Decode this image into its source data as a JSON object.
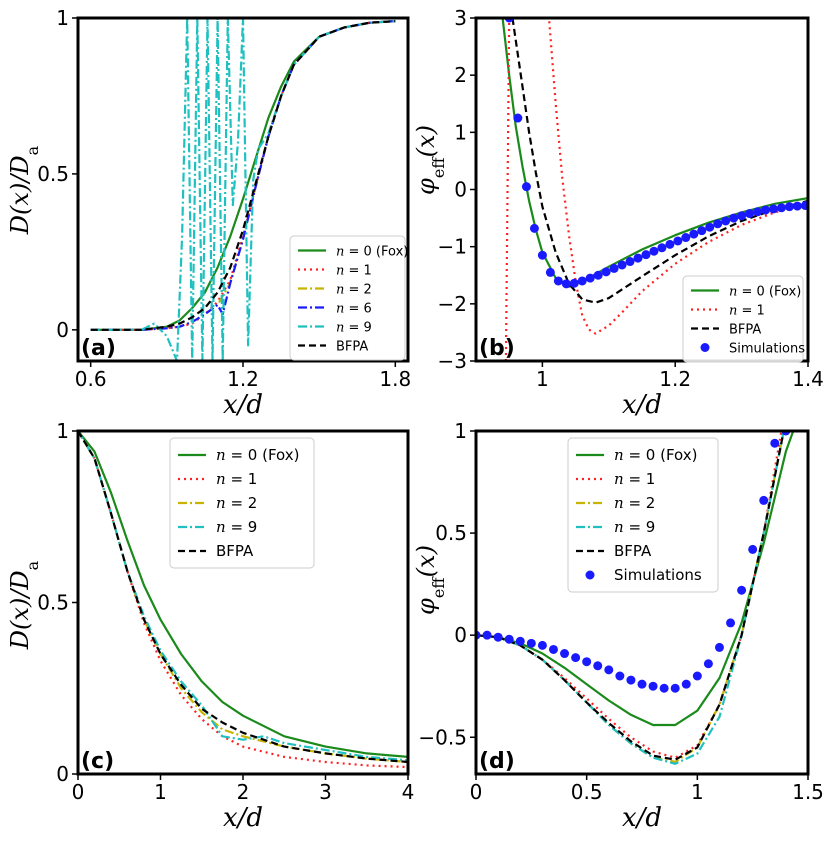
{
  "figure": "Four-panel plot of diffusivity ratio and effective potential versus x/d",
  "chart_data": [
    {
      "panel": "a",
      "type": "line",
      "panel_label": "(a)",
      "xlabel": "x/d",
      "ylabel": "D(x)/D_a",
      "xlim": [
        0.55,
        1.85
      ],
      "ylim": [
        -0.1,
        1.0
      ],
      "xticks": [
        0.6,
        1.2,
        1.8
      ],
      "xtick_labels": [
        "0.6",
        "1.2",
        "1.8"
      ],
      "yticks": [
        0,
        0.5,
        1
      ],
      "ytick_labels": [
        "0",
        "0.5",
        "1"
      ],
      "legend_position": "lower-right",
      "series": [
        {
          "name": "n = 0 (Fox)",
          "color": "#1a8a1a",
          "style": "solid",
          "x": [
            0.6,
            0.8,
            0.9,
            0.95,
            1.0,
            1.05,
            1.1,
            1.15,
            1.2,
            1.25,
            1.3,
            1.35,
            1.4,
            1.5,
            1.6,
            1.7,
            1.8
          ],
          "y": [
            0.0,
            0.0,
            0.01,
            0.03,
            0.07,
            0.12,
            0.2,
            0.3,
            0.42,
            0.55,
            0.68,
            0.78,
            0.86,
            0.94,
            0.97,
            0.985,
            0.99
          ]
        },
        {
          "name": "n = 1",
          "color": "#ff2020",
          "style": "dotted",
          "x": [
            0.6,
            0.8,
            0.9,
            0.95,
            1.0,
            1.05,
            1.1,
            1.15,
            1.2,
            1.25,
            1.3,
            1.35,
            1.4,
            1.5,
            1.6,
            1.7,
            1.8
          ],
          "y": [
            0.0,
            0.0,
            0.005,
            0.01,
            0.02,
            0.05,
            0.09,
            0.16,
            0.3,
            0.46,
            0.62,
            0.75,
            0.85,
            0.94,
            0.97,
            0.985,
            0.99
          ]
        },
        {
          "name": "n = 2",
          "color": "#c8b400",
          "style": "dashdot",
          "x": [
            0.6,
            0.8,
            0.9,
            0.95,
            1.0,
            1.05,
            1.1,
            1.15,
            1.2,
            1.25,
            1.3,
            1.35,
            1.4,
            1.5,
            1.6,
            1.7,
            1.8
          ],
          "y": [
            0.0,
            0.0,
            0.005,
            0.01,
            0.025,
            0.05,
            0.08,
            0.15,
            0.29,
            0.46,
            0.62,
            0.75,
            0.85,
            0.94,
            0.97,
            0.985,
            0.99
          ]
        },
        {
          "name": "n = 6",
          "color": "#1a1aff",
          "style": "dashdot",
          "x": [
            0.6,
            0.8,
            0.9,
            0.95,
            1.0,
            1.05,
            1.1,
            1.12,
            1.15,
            1.2,
            1.25,
            1.3,
            1.35,
            1.4,
            1.5,
            1.6,
            1.7,
            1.8
          ],
          "y": [
            0.0,
            0.0,
            0.005,
            0.01,
            0.025,
            0.05,
            0.08,
            0.05,
            0.15,
            0.29,
            0.46,
            0.62,
            0.75,
            0.85,
            0.94,
            0.97,
            0.985,
            0.99
          ]
        },
        {
          "name": "n = 9",
          "color": "#20c0c0",
          "style": "dashdot",
          "x": [
            0.6,
            0.8,
            0.85,
            0.9,
            0.94,
            0.96,
            0.98,
            1.0,
            1.02,
            1.04,
            1.06,
            1.08,
            1.1,
            1.12,
            1.14,
            1.16,
            1.18,
            1.2,
            1.22,
            1.24,
            1.26,
            1.3,
            1.35,
            1.4,
            1.5,
            1.6,
            1.7,
            1.8
          ],
          "y": [
            0.0,
            0.0,
            0.02,
            -0.02,
            -0.1,
            0.3,
            1.0,
            -0.1,
            1.0,
            -0.1,
            1.0,
            -0.1,
            1.0,
            -0.1,
            1.0,
            0.4,
            0.6,
            1.0,
            -0.05,
            0.48,
            0.58,
            0.63,
            0.75,
            0.85,
            0.94,
            0.97,
            0.985,
            0.99
          ]
        },
        {
          "name": "BFPA",
          "color": "#000000",
          "style": "dashed",
          "x": [
            0.6,
            0.8,
            0.9,
            0.95,
            1.0,
            1.05,
            1.1,
            1.15,
            1.2,
            1.25,
            1.3,
            1.35,
            1.4,
            1.5,
            1.6,
            1.7,
            1.8
          ],
          "y": [
            0.0,
            0.0,
            0.01,
            0.02,
            0.04,
            0.07,
            0.12,
            0.2,
            0.32,
            0.47,
            0.62,
            0.75,
            0.85,
            0.94,
            0.97,
            0.985,
            0.99
          ]
        }
      ]
    },
    {
      "panel": "b",
      "type": "line",
      "panel_label": "(b)",
      "xlabel": "x/d",
      "ylabel": "φ_eff(x)",
      "xlim": [
        0.9,
        1.4
      ],
      "ylim": [
        -3,
        3
      ],
      "xticks": [
        1.0,
        1.2,
        1.4
      ],
      "xtick_labels": [
        "1",
        "1.2",
        "1.4"
      ],
      "yticks": [
        -3,
        -2,
        -1,
        0,
        1,
        2,
        3
      ],
      "ytick_labels": [
        "−3",
        "−2",
        "−1",
        "0",
        "1",
        "2",
        "3"
      ],
      "legend_position": "lower-right",
      "series": [
        {
          "name": "n = 0 (Fox)",
          "color": "#1a8a1a",
          "style": "solid",
          "x": [
            0.94,
            0.95,
            0.96,
            0.97,
            0.98,
            0.99,
            1.0,
            1.02,
            1.04,
            1.06,
            1.08,
            1.1,
            1.15,
            1.2,
            1.25,
            1.3,
            1.35,
            1.4
          ],
          "y": [
            3.0,
            2.0,
            1.1,
            0.4,
            -0.2,
            -0.7,
            -1.1,
            -1.55,
            -1.7,
            -1.6,
            -1.48,
            -1.35,
            -1.05,
            -0.8,
            -0.58,
            -0.4,
            -0.25,
            -0.15
          ]
        },
        {
          "name": "n = 1",
          "color": "#ff2020",
          "style": "dotted",
          "x": [
            0.945,
            0.95,
            0.96,
            0.98,
            1.0,
            1.01,
            1.02,
            1.03,
            1.04,
            1.05,
            1.06,
            1.07,
            1.08,
            1.1,
            1.12,
            1.15,
            1.2,
            1.25,
            1.3,
            1.35,
            1.4
          ],
          "y": [
            -3.0,
            3.0,
            3.2,
            3.2,
            3.1,
            3.0,
            1.5,
            0.2,
            -0.8,
            -1.6,
            -2.2,
            -2.45,
            -2.52,
            -2.38,
            -2.15,
            -1.78,
            -1.3,
            -0.92,
            -0.62,
            -0.4,
            -0.25
          ]
        },
        {
          "name": "BFPA",
          "color": "#000000",
          "style": "dashed",
          "x": [
            0.955,
            0.97,
            0.98,
            0.99,
            1.0,
            1.02,
            1.04,
            1.06,
            1.08,
            1.1,
            1.15,
            1.2,
            1.25,
            1.3,
            1.35,
            1.4
          ],
          "y": [
            3.0,
            1.8,
            1.0,
            0.3,
            -0.3,
            -1.1,
            -1.65,
            -1.92,
            -1.98,
            -1.9,
            -1.52,
            -1.15,
            -0.82,
            -0.55,
            -0.35,
            -0.2
          ]
        },
        {
          "name": "Simulations",
          "color": "#1a1aff",
          "style": "markers",
          "x": [
            0.95,
            0.963,
            0.976,
            0.988,
            1.0,
            1.012,
            1.024,
            1.036,
            1.048,
            1.06,
            1.072,
            1.084,
            1.096,
            1.108,
            1.12,
            1.132,
            1.144,
            1.156,
            1.168,
            1.18,
            1.192,
            1.204,
            1.216,
            1.228,
            1.24,
            1.252,
            1.264,
            1.276,
            1.288,
            1.3,
            1.312,
            1.324,
            1.336,
            1.348,
            1.36,
            1.372,
            1.384,
            1.396
          ],
          "y": [
            3.0,
            1.25,
            0.05,
            -0.68,
            -1.15,
            -1.45,
            -1.6,
            -1.65,
            -1.64,
            -1.6,
            -1.55,
            -1.5,
            -1.44,
            -1.38,
            -1.32,
            -1.26,
            -1.2,
            -1.14,
            -1.08,
            -1.02,
            -0.96,
            -0.9,
            -0.84,
            -0.78,
            -0.72,
            -0.66,
            -0.6,
            -0.55,
            -0.5,
            -0.46,
            -0.42,
            -0.39,
            -0.36,
            -0.34,
            -0.32,
            -0.3,
            -0.29,
            -0.28
          ]
        }
      ]
    },
    {
      "panel": "c",
      "type": "line",
      "panel_label": "(c)",
      "xlabel": "x/d",
      "ylabel": "D(x)/D_a",
      "xlim": [
        0,
        4
      ],
      "ylim": [
        0,
        1
      ],
      "xticks": [
        0,
        1,
        2,
        3,
        4
      ],
      "xtick_labels": [
        "0",
        "1",
        "2",
        "3",
        "4"
      ],
      "yticks": [
        0,
        0.5,
        1
      ],
      "ytick_labels": [
        "0",
        "0.5",
        "1"
      ],
      "legend_position": "top-center",
      "series": [
        {
          "name": "n = 0 (Fox)",
          "color": "#1a8a1a",
          "style": "solid",
          "x": [
            0,
            0.2,
            0.4,
            0.6,
            0.8,
            1.0,
            1.25,
            1.5,
            1.75,
            2.0,
            2.5,
            3.0,
            3.5,
            4.0
          ],
          "y": [
            1.0,
            0.94,
            0.82,
            0.68,
            0.55,
            0.45,
            0.35,
            0.27,
            0.21,
            0.17,
            0.11,
            0.08,
            0.06,
            0.05
          ]
        },
        {
          "name": "n = 1",
          "color": "#ff2020",
          "style": "dotted",
          "x": [
            0,
            0.2,
            0.4,
            0.6,
            0.8,
            1.0,
            1.25,
            1.5,
            1.75,
            2.0,
            2.5,
            3.0,
            3.5,
            4.0
          ],
          "y": [
            1.0,
            0.92,
            0.76,
            0.59,
            0.44,
            0.33,
            0.23,
            0.16,
            0.11,
            0.08,
            0.05,
            0.035,
            0.025,
            0.02
          ]
        },
        {
          "name": "n = 2",
          "color": "#c8b400",
          "style": "dashdot",
          "x": [
            0,
            0.2,
            0.4,
            0.6,
            0.8,
            1.0,
            1.25,
            1.5,
            1.75,
            2.0,
            2.5,
            3.0,
            3.5,
            4.0
          ],
          "y": [
            1.0,
            0.92,
            0.76,
            0.59,
            0.45,
            0.35,
            0.25,
            0.18,
            0.13,
            0.11,
            0.08,
            0.06,
            0.045,
            0.035
          ]
        },
        {
          "name": "n = 9",
          "color": "#20c0c0",
          "style": "dashdot",
          "x": [
            0,
            0.2,
            0.4,
            0.6,
            0.8,
            1.0,
            1.25,
            1.5,
            1.75,
            2.0,
            2.25,
            2.5,
            3.0,
            3.5,
            4.0
          ],
          "y": [
            1.0,
            0.92,
            0.76,
            0.59,
            0.46,
            0.36,
            0.27,
            0.2,
            0.11,
            0.1,
            0.11,
            0.09,
            0.07,
            0.05,
            0.04
          ]
        },
        {
          "name": "BFPA",
          "color": "#000000",
          "style": "dashed",
          "x": [
            0,
            0.2,
            0.4,
            0.6,
            0.8,
            1.0,
            1.25,
            1.5,
            1.75,
            2.0,
            2.5,
            3.0,
            3.5,
            4.0
          ],
          "y": [
            1.0,
            0.92,
            0.76,
            0.59,
            0.45,
            0.35,
            0.26,
            0.19,
            0.15,
            0.12,
            0.08,
            0.06,
            0.045,
            0.035
          ]
        }
      ]
    },
    {
      "panel": "d",
      "type": "line",
      "panel_label": "(d)",
      "xlabel": "x/d",
      "ylabel": "φ_eff(x)",
      "xlim": [
        0,
        1.5
      ],
      "ylim": [
        -0.68,
        1.0
      ],
      "xticks": [
        0,
        0.5,
        1.0,
        1.5
      ],
      "xtick_labels": [
        "0",
        "0.5",
        "1",
        "1.5"
      ],
      "yticks": [
        -0.5,
        0,
        0.5,
        1
      ],
      "ytick_labels": [
        "−0.5",
        "0",
        "0.5",
        "1"
      ],
      "legend_position": "top-center",
      "series": [
        {
          "name": "n = 0 (Fox)",
          "color": "#1a8a1a",
          "style": "solid",
          "x": [
            0,
            0.1,
            0.2,
            0.3,
            0.4,
            0.5,
            0.6,
            0.7,
            0.8,
            0.9,
            1.0,
            1.1,
            1.2,
            1.3,
            1.4,
            1.45
          ],
          "y": [
            0.0,
            -0.01,
            -0.04,
            -0.09,
            -0.16,
            -0.24,
            -0.32,
            -0.39,
            -0.44,
            -0.44,
            -0.37,
            -0.21,
            0.06,
            0.45,
            0.9,
            1.05
          ]
        },
        {
          "name": "n = 1",
          "color": "#ff2020",
          "style": "dotted",
          "x": [
            0,
            0.1,
            0.2,
            0.3,
            0.4,
            0.5,
            0.6,
            0.7,
            0.8,
            0.9,
            1.0,
            1.1,
            1.2,
            1.3,
            1.38
          ],
          "y": [
            0.0,
            -0.01,
            -0.05,
            -0.12,
            -0.21,
            -0.31,
            -0.41,
            -0.5,
            -0.57,
            -0.6,
            -0.54,
            -0.34,
            0.0,
            0.5,
            1.0
          ]
        },
        {
          "name": "n = 2",
          "color": "#c8b400",
          "style": "dashdot",
          "x": [
            0,
            0.1,
            0.2,
            0.3,
            0.4,
            0.5,
            0.6,
            0.7,
            0.8,
            0.9,
            1.0,
            1.1,
            1.2,
            1.3,
            1.39
          ],
          "y": [
            0.0,
            -0.01,
            -0.05,
            -0.12,
            -0.22,
            -0.33,
            -0.44,
            -0.53,
            -0.6,
            -0.62,
            -0.55,
            -0.34,
            0.0,
            0.5,
            1.0
          ]
        },
        {
          "name": "n = 9",
          "color": "#20c0c0",
          "style": "dashdot",
          "x": [
            0,
            0.1,
            0.2,
            0.3,
            0.4,
            0.5,
            0.6,
            0.7,
            0.8,
            0.9,
            1.0,
            1.1,
            1.2,
            1.3,
            1.39
          ],
          "y": [
            0.0,
            -0.01,
            -0.05,
            -0.12,
            -0.22,
            -0.33,
            -0.44,
            -0.53,
            -0.6,
            -0.63,
            -0.58,
            -0.4,
            0.0,
            0.5,
            1.0
          ]
        },
        {
          "name": "BFPA",
          "color": "#000000",
          "style": "dashed",
          "x": [
            0,
            0.1,
            0.2,
            0.3,
            0.4,
            0.5,
            0.6,
            0.7,
            0.8,
            0.9,
            1.0,
            1.1,
            1.2,
            1.3,
            1.39
          ],
          "y": [
            0.0,
            -0.01,
            -0.05,
            -0.12,
            -0.22,
            -0.33,
            -0.43,
            -0.52,
            -0.59,
            -0.61,
            -0.55,
            -0.34,
            0.0,
            0.5,
            1.0
          ]
        },
        {
          "name": "Simulations",
          "color": "#1a1aff",
          "style": "markers",
          "x": [
            0,
            0.05,
            0.1,
            0.15,
            0.2,
            0.25,
            0.3,
            0.35,
            0.4,
            0.45,
            0.5,
            0.55,
            0.6,
            0.65,
            0.7,
            0.75,
            0.8,
            0.85,
            0.9,
            0.95,
            1.0,
            1.05,
            1.1,
            1.15,
            1.2,
            1.25,
            1.3,
            1.35,
            1.4
          ],
          "y": [
            0.0,
            0.0,
            -0.01,
            -0.02,
            -0.03,
            -0.04,
            -0.05,
            -0.07,
            -0.09,
            -0.11,
            -0.13,
            -0.15,
            -0.17,
            -0.2,
            -0.22,
            -0.24,
            -0.25,
            -0.26,
            -0.26,
            -0.24,
            -0.2,
            -0.14,
            -0.06,
            0.06,
            0.22,
            0.42,
            0.66,
            0.94,
            1.0
          ]
        }
      ]
    }
  ]
}
